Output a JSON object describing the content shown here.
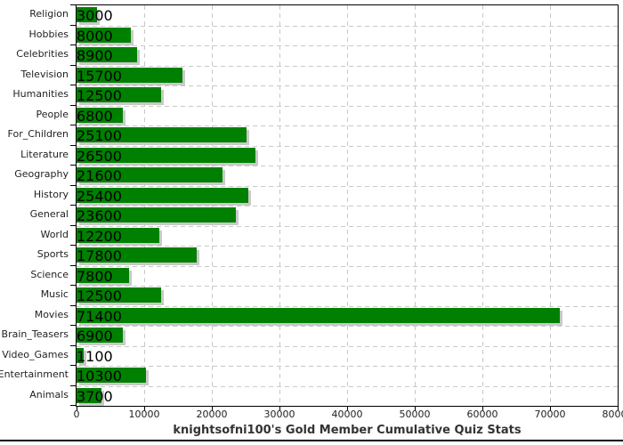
{
  "chart_data": {
    "type": "bar",
    "orientation": "horizontal",
    "title": "knightsofni100's Gold Member Cumulative Quiz Stats",
    "categories": [
      "Religion",
      "Hobbies",
      "Celebrities",
      "Television",
      "Humanities",
      "People",
      "For_Children",
      "Literature",
      "Geography",
      "History",
      "General",
      "World",
      "Sports",
      "Science",
      "Music",
      "Movies",
      "Brain_Teasers",
      "Video_Games",
      "Entertainment",
      "Animals"
    ],
    "values": [
      3000,
      8000,
      8900,
      15700,
      12500,
      6800,
      25100,
      26500,
      21600,
      25400,
      23600,
      12200,
      17800,
      7800,
      12500,
      71400,
      6900,
      1100,
      10300,
      3700
    ],
    "xlim": [
      0,
      80000
    ],
    "x_ticks": [
      0,
      10000,
      20000,
      30000,
      40000,
      50000,
      60000,
      70000,
      80000
    ],
    "x_tick_labels": [
      "0",
      "10000",
      "20000",
      "30000",
      "40000",
      "50000",
      "60000",
      "70000",
      "80000"
    ],
    "grid": true,
    "legend": null,
    "colors": {
      "bar_fill": "#008000",
      "bar_shadow": "#c9c9c9",
      "gridline": "#c8c8c8",
      "axis": "#000000",
      "label_text": "#222222",
      "title_text": "#333333"
    }
  }
}
